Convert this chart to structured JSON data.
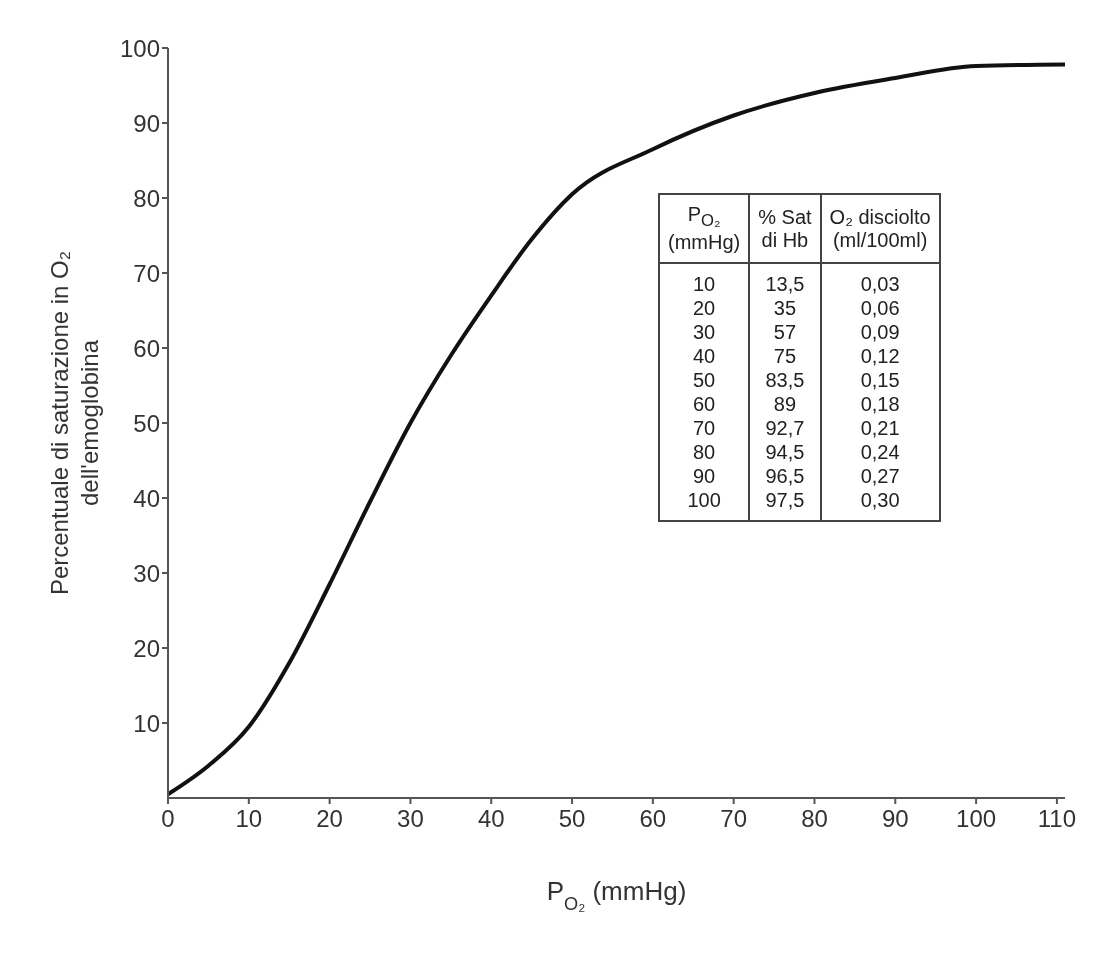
{
  "chart_data": {
    "type": "line",
    "xlabel": "P$_{O₂}$ (mmHg)",
    "ylabel": "Percentuale di saturazione in O₂\ndell'emoglobina",
    "x": [
      0,
      5,
      10,
      15,
      20,
      25,
      30,
      35,
      40,
      45,
      50,
      60,
      70,
      80,
      90,
      100,
      111
    ],
    "series": [
      {
        "color": "#111111",
        "values": [
          0.5,
          4.3,
          9.5,
          18,
          28.5,
          39.5,
          50,
          59,
          67,
          74.5,
          80.5,
          86.5,
          91,
          94,
          96,
          97.6,
          97.8
        ]
      }
    ],
    "xlim": [
      0,
      111
    ],
    "xticks": [
      0,
      10,
      20,
      30,
      40,
      50,
      60,
      70,
      80,
      90,
      100,
      110
    ],
    "ylim": [
      0,
      100
    ],
    "yticks": [
      10,
      20,
      30,
      40,
      50,
      60,
      70,
      80,
      90,
      100
    ],
    "marker": "none",
    "line_style": "solid",
    "annotations": [
      "P$_{O₂}$\n(mmHg)",
      "% Sat\ndi Hb",
      "O₂ disciolto\n(ml/100ml)",
      "10",
      "13,5",
      "0,03",
      "20",
      "35",
      "0,06",
      "30",
      "57",
      "0,09",
      "40",
      "75",
      "0,12",
      "50",
      "83,5",
      "0,15",
      "60",
      "89",
      "0,18",
      "70",
      "92,7",
      "0,21",
      "80",
      "94,5",
      "0,24",
      "90",
      "96,5",
      "0,27",
      "100",
      "97,5",
      "0,30"
    ]
  }
}
